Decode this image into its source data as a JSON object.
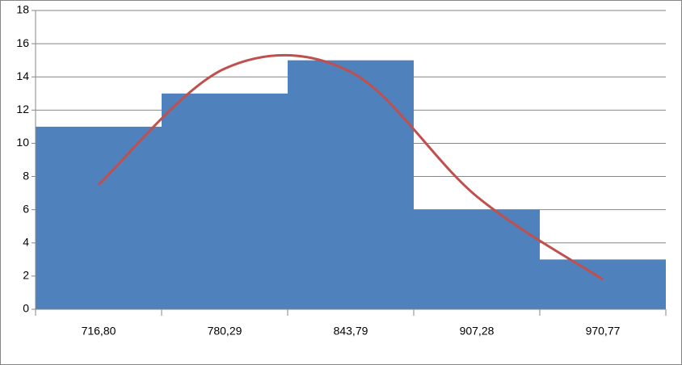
{
  "chart_data": {
    "type": "bar",
    "categories": [
      "716,80",
      "780,29",
      "843,79",
      "907,28",
      "970,77"
    ],
    "values": [
      11,
      13,
      15,
      6,
      3
    ],
    "color": "#4f81bd",
    "line_values": [
      7.5,
      14.5,
      14.3,
      6.8,
      1.8
    ],
    "line_color": "#c0504d",
    "ylim": [
      0,
      18
    ],
    "yticks": [
      0,
      2,
      4,
      6,
      8,
      10,
      12,
      14,
      16,
      18
    ],
    "grid": true
  }
}
